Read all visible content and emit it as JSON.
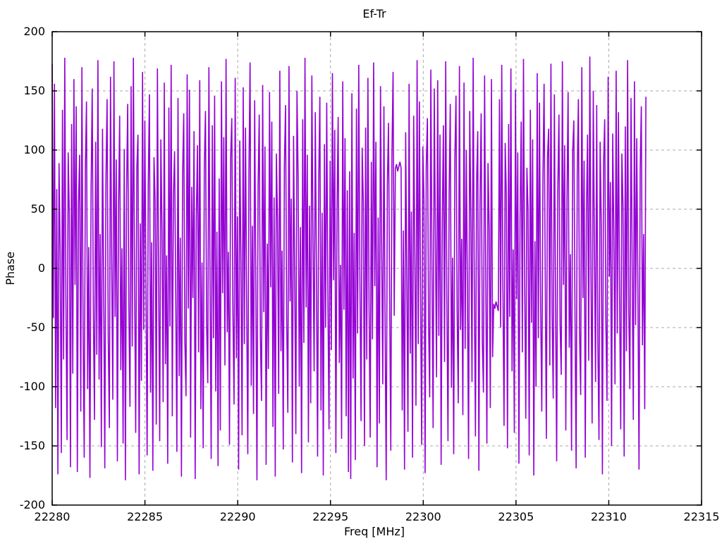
{
  "chart_data": {
    "type": "line",
    "title": "Ef-Tr",
    "xlabel": "Freq [MHz]",
    "ylabel": "Phase",
    "xlim": [
      22280,
      22315
    ],
    "ylim": [
      -200,
      200
    ],
    "x_ticks": [
      22280,
      22285,
      22290,
      22295,
      22300,
      22305,
      22310,
      22315
    ],
    "y_ticks": [
      -200,
      -150,
      -100,
      -50,
      0,
      50,
      100,
      150,
      200
    ],
    "grid": true,
    "grid_color": "#a8a8a8",
    "border_color": "#000000",
    "legend": "none",
    "series": [
      {
        "name": "Ef-Tr phase",
        "color": "#9400d3",
        "x_start": 22280,
        "x_end": 22312,
        "values": [
          173,
          -42,
          156,
          -118,
          67,
          -174,
          89,
          12,
          -156,
          134,
          -77,
          178,
          -23,
          -145,
          98,
          45,
          -168,
          122,
          -89,
          160,
          -14,
          137,
          -172,
          55,
          96,
          -121,
          170,
          -48,
          -160,
          83,
          141,
          -102,
          18,
          -177,
          65,
          152,
          -36,
          -128,
          107,
          -73,
          176,
          -94,
          29,
          -151,
          118,
          -11,
          -169,
          74,
          143,
          -57,
          -135,
          162,
          8,
          -111,
          175,
          -41,
          92,
          -163,
          51,
          129,
          -86,
          17,
          -148,
          101,
          -179,
          63,
          139,
          -29,
          -117,
          154,
          -66,
          178,
          -7,
          -139,
          85,
          113,
          -174,
          38,
          -95,
          166,
          -52,
          125,
          -16,
          -158,
          71,
          147,
          -105,
          22,
          -171,
          94,
          58,
          -132,
          169,
          -3,
          -146,
          109,
          33,
          -113,
          157,
          -81,
          11,
          -165,
          136,
          -49,
          172,
          -125,
          61,
          99,
          -19,
          -155,
          144,
          -91,
          26,
          -176,
          79,
          131,
          -62,
          -108,
          164,
          -34,
          151,
          -143,
          69,
          -25,
          116,
          -178,
          42,
          104,
          -71,
          159,
          -119,
          5,
          -152,
          87,
          133,
          -46,
          -97,
          170,
          -13,
          -161,
          121,
          -59,
          146,
          -104,
          31,
          -167,
          76,
          -137,
          158,
          -21,
          111,
          -82,
          177,
          -54,
          14,
          -149,
          93,
          127,
          -38,
          -115,
          161,
          -76,
          44,
          -170,
          108,
          7,
          -141,
          153,
          -64,
          119,
          -27,
          -157,
          81,
          174,
          -99,
          36,
          -123,
          142,
          -9,
          -179,
          68,
          130,
          -58,
          -112,
          155,
          -37,
          103,
          -166,
          21,
          -85,
          149,
          -16,
          124,
          -134,
          60,
          -176,
          97,
          40,
          -106,
          167,
          -70,
          15,
          -153,
          88,
          138,
          -44,
          -122,
          171,
          -28,
          59,
          -164,
          112,
          -5,
          -140,
          150,
          77,
          -100,
          35,
          -173,
          126,
          -63,
          178,
          -33,
          96,
          -147,
          53,
          -114,
          163,
          24,
          -87,
          132,
          -2,
          -159,
          73,
          145,
          -120,
          47,
          -175,
          105,
          -50,
          140,
          -22,
          -136,
          91,
          -69,
          165,
          -10,
          117,
          -156,
          49,
          128,
          -80,
          3,
          -144,
          158,
          -35,
          110,
          -125,
          66,
          -172,
          82,
          -178,
          148,
          -93,
          30,
          -162,
          135,
          -55,
          172,
          -8,
          -129,
          102,
          56,
          -150,
          119,
          -77,
          161,
          -30,
          -143,
          90,
          -60,
          174,
          -15,
          107,
          -168,
          43,
          -131,
          154,
          20,
          -98,
          137,
          -47,
          -179,
          70,
          123,
          -26,
          -154,
          95,
          166,
          -40,
          84,
          88,
          82,
          86,
          90,
          85,
          -120,
          32,
          -170,
          115,
          -6,
          -138,
          156,
          -72,
          48,
          -160,
          129,
          13,
          -116,
          176,
          -64,
          141,
          -21,
          -149,
          103,
          57,
          -173,
          86,
          127,
          -44,
          -109,
          168,
          -1,
          -135,
          152,
          28,
          -92,
          159,
          -57,
          113,
          -166,
          37,
          121,
          -79,
          175,
          -24,
          -146,
          64,
          139,
          -101,
          9,
          -157,
          93,
          146,
          -36,
          -114,
          171,
          -52,
          25,
          -124,
          157,
          -68,
          100,
          -19,
          -161,
          133,
          45,
          -96,
          178,
          -12,
          -142,
          72,
          116,
          -171,
          54,
          131,
          -61,
          -105,
          163,
          -2,
          -148,
          89,
          34,
          -118,
          160,
          -75,
          -30,
          -34,
          -28,
          -32,
          -36,
          143,
          -50,
          172,
          -17,
          -133,
          106,
          62,
          -152,
          122,
          -41,
          169,
          -87,
          16,
          -139,
          151,
          -26,
          98,
          -165,
          41,
          124,
          -71,
          177,
          -9,
          -127,
          85,
          50,
          -158,
          134,
          -46,
          109,
          -175,
          23,
          -100,
          165,
          -59,
          140,
          -31,
          -121,
          75,
          156,
          -5,
          -144,
          94,
          118,
          -82,
          173,
          -38,
          -110,
          147,
          -20,
          -163,
          66,
          130,
          -48,
          -90,
          175,
          -14,
          104,
          -137,
          58,
          149,
          -67,
          12,
          -154,
          99,
          125,
          -33,
          -169,
          80,
          143,
          -53,
          -107,
          170,
          -25,
          91,
          -160,
          46,
          113,
          -78,
          179,
          -4,
          -131,
          150,
          19,
          -96,
          138,
          -62,
          -145,
          107,
          39,
          -174,
          88,
          126,
          -43,
          -112,
          162,
          -7,
          73,
          -150,
          114,
          28,
          -98,
          167,
          -55,
          132,
          -23,
          -136,
          97,
          52,
          -159,
          120,
          -70,
          176,
          -34,
          -102,
          144,
          4,
          -128,
          158,
          -48,
          110,
          -15,
          -170,
          83,
          137,
          -65,
          29,
          -119,
          145
        ]
      }
    ]
  }
}
